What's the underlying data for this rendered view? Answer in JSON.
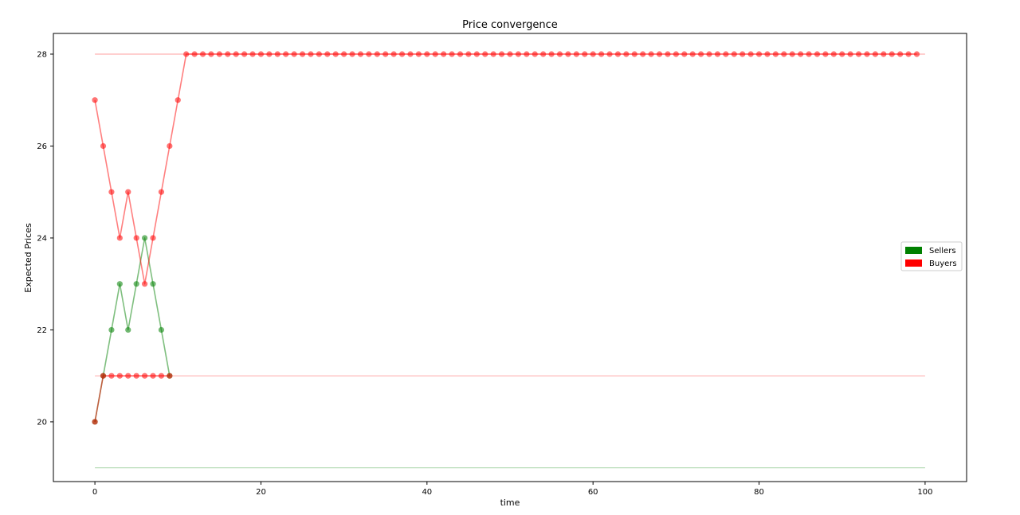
{
  "chart_data": {
    "type": "line",
    "title": "Price convergence",
    "xlabel": "time",
    "ylabel": "Expected Prices",
    "xlim": [
      -5,
      105
    ],
    "ylim": [
      18.7,
      28.45
    ],
    "x_ticks": [
      0,
      20,
      40,
      60,
      80,
      100
    ],
    "y_ticks": [
      20,
      22,
      24,
      26,
      28
    ],
    "grid": false,
    "legend_position": "right",
    "legend": [
      {
        "label": "Sellers",
        "color": "#008000"
      },
      {
        "label": "Buyers",
        "color": "#ff0000"
      }
    ],
    "reference_lines": [
      {
        "y": 28,
        "x_range": [
          0,
          100
        ],
        "color": "#ff0000"
      },
      {
        "y": 21,
        "x_range": [
          0,
          100
        ],
        "color": "#ff0000"
      },
      {
        "y": 19,
        "x_range": [
          0,
          100
        ],
        "color": "#008000"
      }
    ],
    "series": [
      {
        "role": "seller",
        "color": "#008000",
        "x": [
          0,
          1,
          2,
          3,
          4,
          5,
          6,
          7,
          8,
          9
        ],
        "y": [
          20,
          21,
          22,
          23,
          22,
          23,
          24,
          23,
          22,
          21
        ]
      },
      {
        "role": "buyer",
        "color": "#ff0000",
        "x": [
          0,
          1,
          2,
          3,
          4,
          5,
          6,
          7,
          8,
          9
        ],
        "y": [
          20,
          21,
          21,
          21,
          21,
          21,
          21,
          21,
          21,
          21
        ]
      },
      {
        "role": "buyer",
        "color": "#ff0000",
        "x": [
          0,
          1,
          2,
          3,
          4,
          5,
          6,
          7,
          8,
          9,
          10,
          11,
          12,
          13,
          14,
          15,
          16,
          17,
          18,
          19,
          20,
          21,
          22,
          23,
          24,
          25,
          26,
          27,
          28,
          29,
          30,
          31,
          32,
          33,
          34,
          35,
          36,
          37,
          38,
          39,
          40,
          41,
          42,
          43,
          44,
          45,
          46,
          47,
          48,
          49,
          50,
          51,
          52,
          53,
          54,
          55,
          56,
          57,
          58,
          59,
          60,
          61,
          62,
          63,
          64,
          65,
          66,
          67,
          68,
          69,
          70,
          71,
          72,
          73,
          74,
          75,
          76,
          77,
          78,
          79,
          80,
          81,
          82,
          83,
          84,
          85,
          86,
          87,
          88,
          89,
          90,
          91,
          92,
          93,
          94,
          95,
          96,
          97,
          98,
          99
        ],
        "y": [
          27,
          26,
          25,
          24,
          25,
          24,
          23,
          24,
          25,
          26,
          27,
          28,
          28,
          28,
          28,
          28,
          28,
          28,
          28,
          28,
          28,
          28,
          28,
          28,
          28,
          28,
          28,
          28,
          28,
          28,
          28,
          28,
          28,
          28,
          28,
          28,
          28,
          28,
          28,
          28,
          28,
          28,
          28,
          28,
          28,
          28,
          28,
          28,
          28,
          28,
          28,
          28,
          28,
          28,
          28,
          28,
          28,
          28,
          28,
          28,
          28,
          28,
          28,
          28,
          28,
          28,
          28,
          28,
          28,
          28,
          28,
          28,
          28,
          28,
          28,
          28,
          28,
          28,
          28,
          28,
          28,
          28,
          28,
          28,
          28,
          28,
          28,
          28,
          28,
          28,
          28,
          28,
          28,
          28,
          28,
          28,
          28,
          28,
          28,
          28
        ]
      }
    ]
  }
}
